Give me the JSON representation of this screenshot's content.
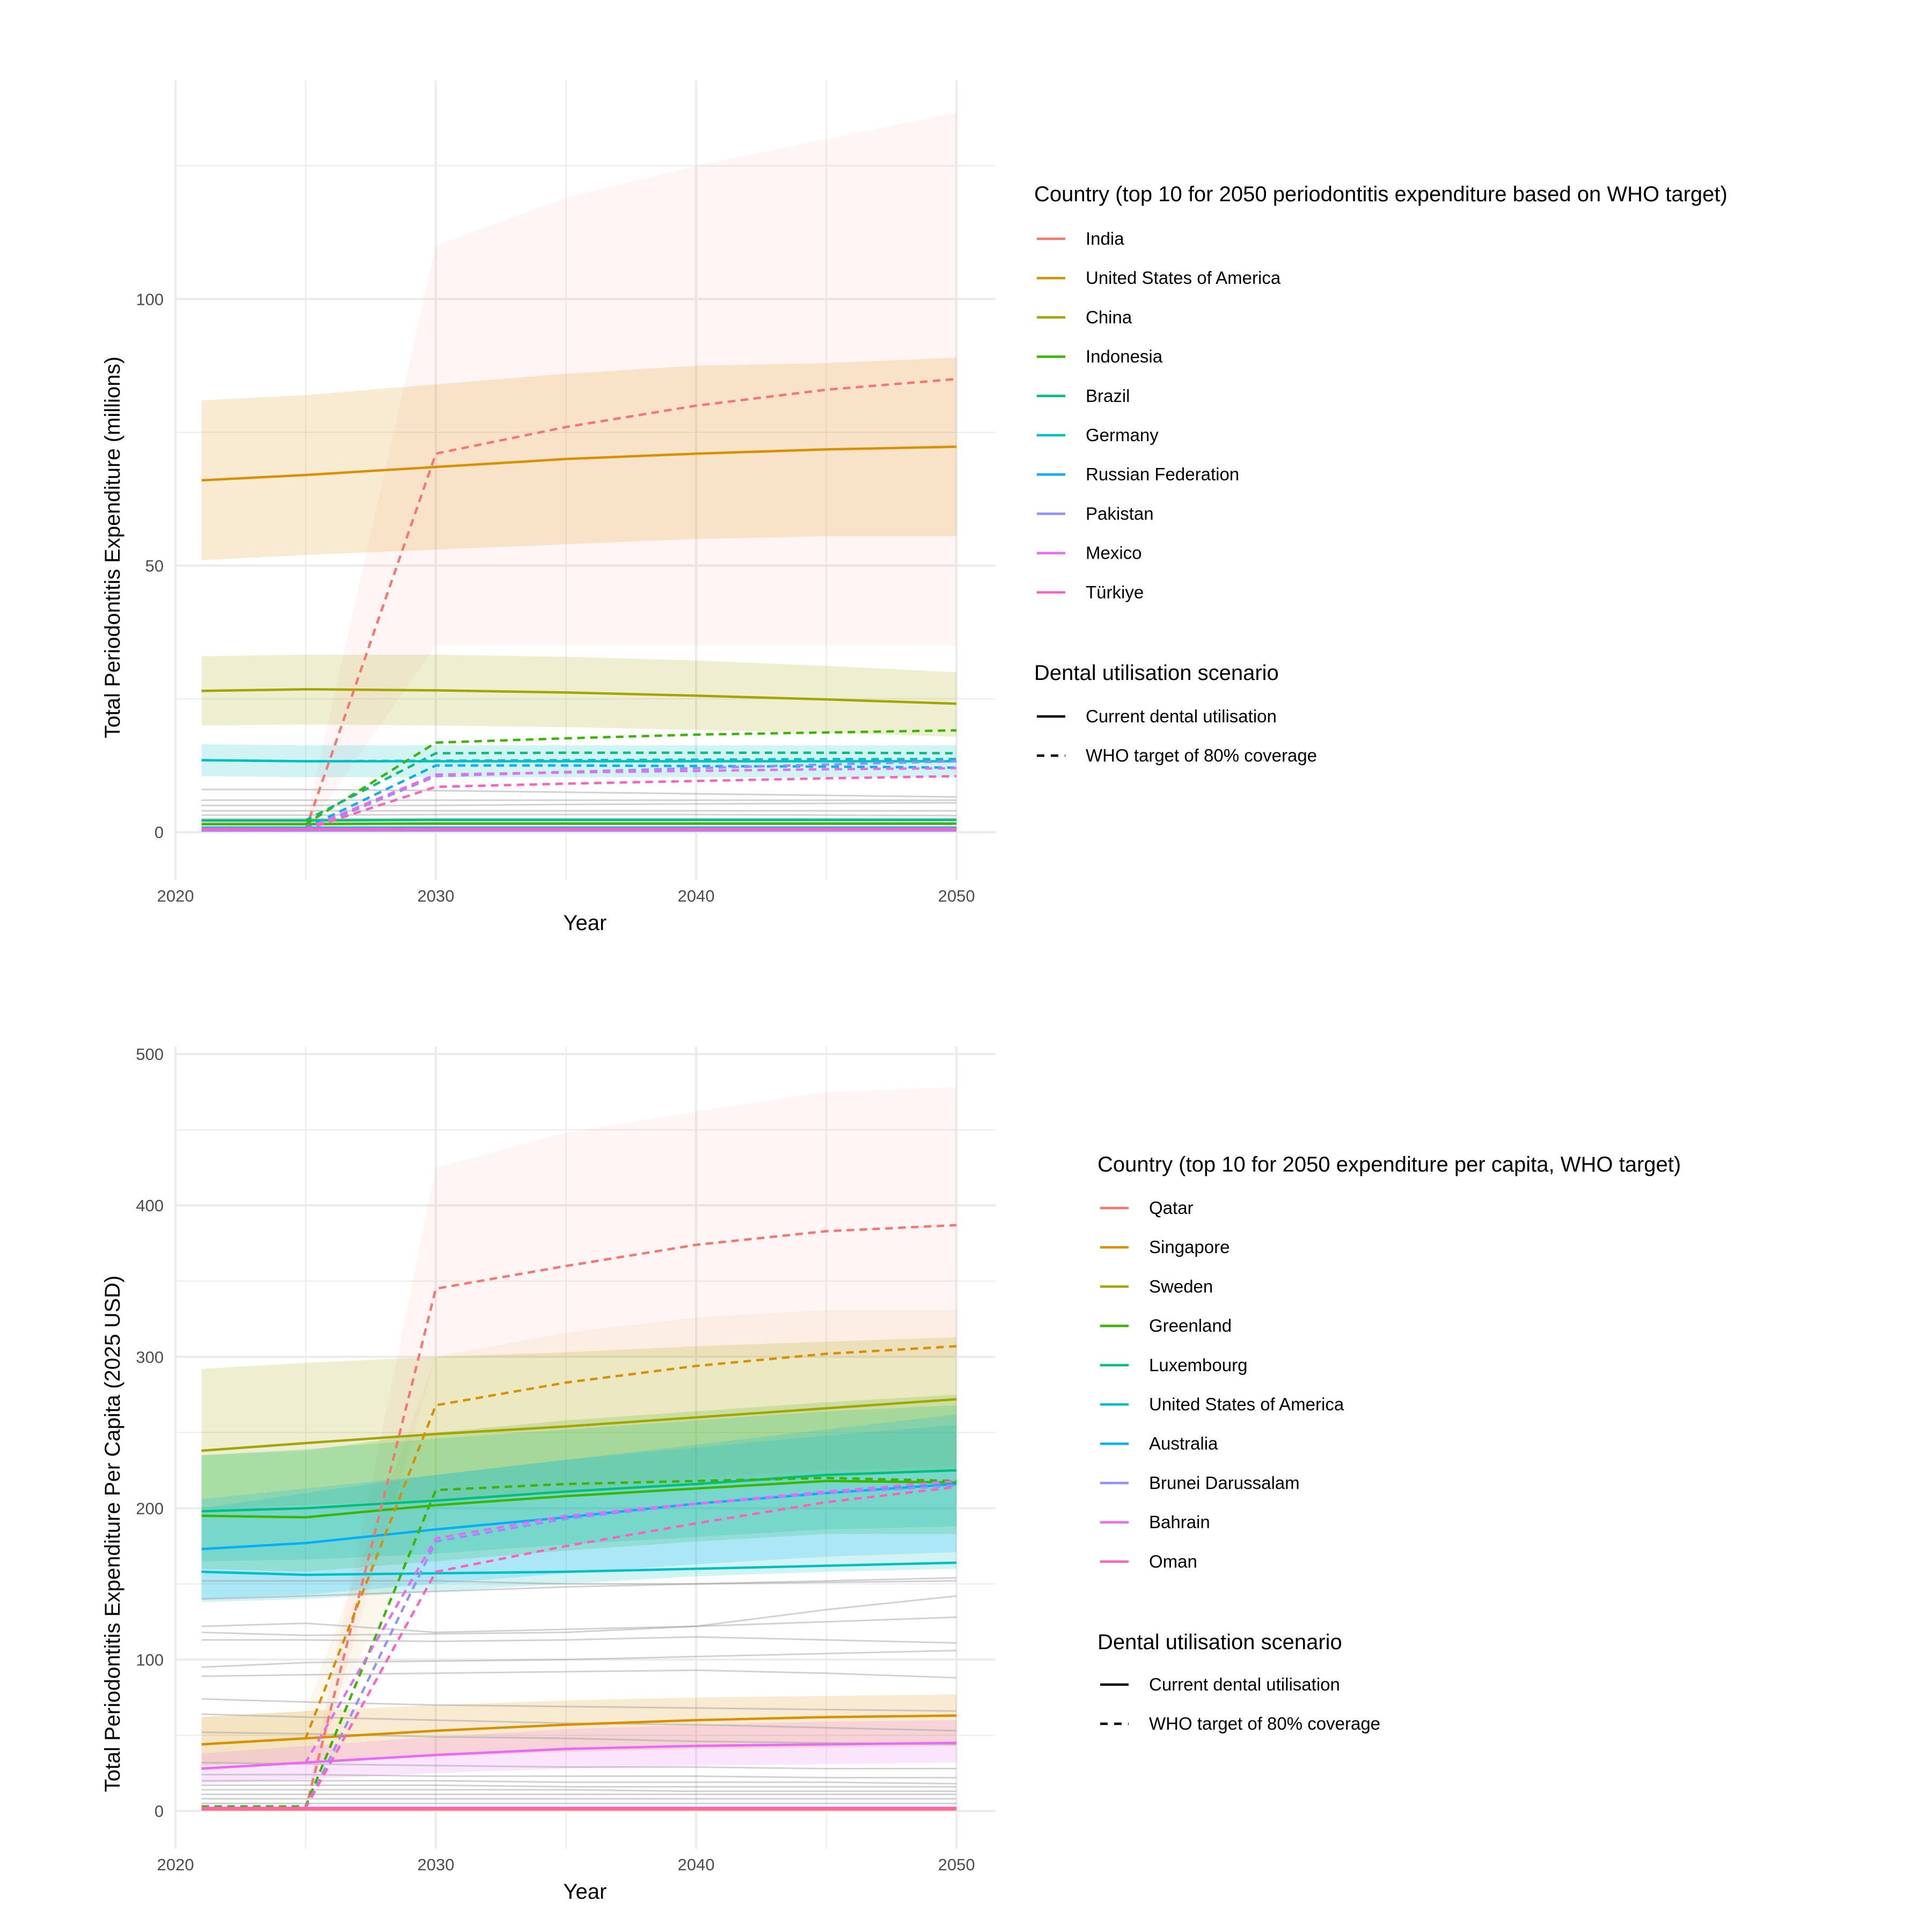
{
  "chart_data": [
    {
      "type": "line",
      "xlabel": "Year",
      "ylabel": "Total Periodontitis Expenditure (millions)",
      "xlim": [
        2020,
        2051.5
      ],
      "ylim": [
        -9,
        141
      ],
      "x_ticks": [
        "2020",
        "2030",
        "2040",
        "2050"
      ],
      "y_ticks": [
        "0",
        "50",
        "100"
      ],
      "grid": true,
      "legend_position": "right",
      "years": [
        2021,
        2025,
        2030,
        2035,
        2040,
        2045,
        2050
      ],
      "country_legend_title": "Country (top 10 for 2050 periodontitis expenditure based on WHO target)",
      "scenario_legend_title": "Dental utilisation scenario",
      "scenarios": [
        {
          "label": "Current dental utilisation",
          "dash": "solid"
        },
        {
          "label": "WHO target of 80% coverage",
          "dash": "dashed"
        }
      ],
      "series": [
        {
          "name": "India",
          "color": "#F8766D",
          "current": [
            0.5,
            0.5,
            0.5,
            0.5,
            0.5,
            0.5,
            0.5
          ],
          "who_target": [
            0.5,
            0.5,
            71,
            76,
            80,
            83,
            85
          ],
          "who_band": [
            [
              0,
              2
            ],
            [
              0,
              2
            ],
            [
              35,
              110
            ],
            [
              35,
              119
            ],
            [
              35,
              125
            ],
            [
              35,
              130
            ],
            [
              35,
              135
            ]
          ]
        },
        {
          "name": "United States of America",
          "color": "#D89000",
          "current": [
            66,
            67,
            68.5,
            70,
            71,
            71.8,
            72.3
          ],
          "current_band": [
            [
              51,
              81
            ],
            [
              52,
              82
            ],
            [
              53,
              84
            ],
            [
              54,
              86
            ],
            [
              55,
              87.5
            ],
            [
              55.5,
              88
            ],
            [
              55.5,
              89
            ]
          ]
        },
        {
          "name": "China",
          "color": "#A3A500",
          "current": [
            26.5,
            26.8,
            26.6,
            26.2,
            25.6,
            24.9,
            24.1
          ],
          "current_band": [
            [
              20,
              33
            ],
            [
              20.2,
              33.3
            ],
            [
              20,
              33.3
            ],
            [
              19.7,
              32.9
            ],
            [
              19.2,
              32.2
            ],
            [
              18.6,
              31.2
            ],
            [
              17.9,
              30
            ]
          ]
        },
        {
          "name": "Indonesia",
          "color": "#39B600",
          "current": [
            1.5,
            1.5,
            1.6,
            1.6,
            1.6,
            1.6,
            1.6
          ],
          "who_target": [
            1.5,
            1.5,
            16.8,
            17.6,
            18.3,
            18.7,
            19.1
          ]
        },
        {
          "name": "Brazil",
          "color": "#00BF7D",
          "current": [
            2.2,
            2.2,
            2.3,
            2.3,
            2.3,
            2.3,
            2.3
          ],
          "who_target": [
            2.2,
            2.2,
            14.8,
            14.9,
            14.9,
            14.9,
            14.8
          ]
        },
        {
          "name": "Germany",
          "color": "#00BFC4",
          "current": [
            13.5,
            13.3,
            13.3,
            13.3,
            13.3,
            13.3,
            13.3
          ],
          "current_band": [
            [
              10.5,
              16.5
            ],
            [
              10.3,
              16.3
            ],
            [
              10.3,
              16.3
            ],
            [
              10.3,
              16.3
            ],
            [
              10.3,
              16.3
            ],
            [
              10.3,
              16.3
            ],
            [
              10.3,
              16.3
            ]
          ],
          "who_target": [
            13.5,
            13.3,
            13.4,
            13.5,
            13.6,
            13.7,
            13.7
          ]
        },
        {
          "name": "Russian Federation",
          "color": "#00B0F6",
          "current": [
            0.8,
            0.8,
            0.8,
            0.8,
            0.8,
            0.8,
            0.8
          ],
          "who_target": [
            0.8,
            0.8,
            12.5,
            12.5,
            12.4,
            12.3,
            12.1
          ]
        },
        {
          "name": "Pakistan",
          "color": "#9590FF",
          "current": [
            0.3,
            0.3,
            0.3,
            0.3,
            0.3,
            0.3,
            0.3
          ],
          "who_target": [
            0.3,
            0.3,
            10.5,
            11.3,
            12,
            12.7,
            13.3
          ]
        },
        {
          "name": "Mexico",
          "color": "#E76BF3",
          "current": [
            0.6,
            0.6,
            0.6,
            0.6,
            0.6,
            0.6,
            0.6
          ],
          "who_target": [
            0.6,
            0.6,
            10.8,
            11.2,
            11.5,
            11.8,
            12
          ]
        },
        {
          "name": "Türkiye",
          "color": "#FF62BC",
          "current": [
            0.5,
            0.5,
            0.5,
            0.5,
            0.5,
            0.5,
            0.5
          ],
          "who_target": [
            0.5,
            0.5,
            8.5,
            9.1,
            9.6,
            10.1,
            10.5
          ]
        }
      ],
      "background_lines": [
        [
          8,
          8,
          7.8,
          7.5,
          7.2,
          6.9,
          6.6
        ],
        [
          6,
          6,
          6,
          6,
          6,
          6,
          6
        ],
        [
          5,
          5,
          5,
          5.2,
          5.3,
          5.4,
          5.5
        ],
        [
          4,
          4,
          4,
          4,
          4,
          4,
          4
        ],
        [
          3.2,
          3.2,
          3.3,
          3.3,
          3.3,
          3.2,
          3.1
        ],
        [
          2.5,
          2.5,
          2.5,
          2.5,
          2.5,
          2.5,
          2.5
        ],
        [
          1.8,
          1.8,
          1.8,
          1.8,
          1.8,
          1.8,
          1.8
        ],
        [
          1,
          1,
          1,
          1,
          1,
          1,
          1
        ],
        [
          0.4,
          0.4,
          0.4,
          0.4,
          0.4,
          0.4,
          0.4
        ]
      ]
    },
    {
      "type": "line",
      "xlabel": "Year",
      "ylabel": "Total Periodontitis Expenditure Per Capita (2025 USD)",
      "xlim": [
        2020,
        2051.5
      ],
      "ylim": [
        -25,
        505
      ],
      "x_ticks": [
        "2020",
        "2030",
        "2040",
        "2050"
      ],
      "y_ticks": [
        "0",
        "100",
        "200",
        "300",
        "400",
        "500"
      ],
      "grid": true,
      "legend_position": "right",
      "years": [
        2021,
        2025,
        2030,
        2035,
        2040,
        2045,
        2050
      ],
      "country_legend_title": "Country (top 10 for 2050 expenditure per capita, WHO target)",
      "scenario_legend_title": "Dental utilisation scenario",
      "scenarios": [
        {
          "label": "Current dental utilisation",
          "dash": "solid"
        },
        {
          "label": "WHO target of 80% coverage",
          "dash": "dashed"
        }
      ],
      "series": [
        {
          "name": "Qatar",
          "color": "#F8766D",
          "current": [
            1,
            1,
            1,
            1,
            1,
            1,
            1
          ],
          "who_target": [
            1,
            1,
            345,
            360,
            374,
            383,
            387
          ],
          "who_band": [
            [
              0,
              5
            ],
            [
              0,
              5
            ],
            [
              300,
              425
            ],
            [
              300,
              448
            ],
            [
              300,
              462
            ],
            [
              300,
              475
            ],
            [
              300,
              478
            ]
          ]
        },
        {
          "name": "Singapore",
          "color": "#D89000",
          "current": [
            44,
            48,
            53,
            57,
            60,
            62,
            63
          ],
          "current_band": [
            [
              30,
              62
            ],
            [
              32,
              66
            ],
            [
              36,
              70
            ],
            [
              39,
              73
            ],
            [
              41,
              75
            ],
            [
              42,
              76
            ],
            [
              43,
              77
            ]
          ],
          "who_target": [
            44,
            48,
            268,
            283,
            294,
            302,
            307
          ],
          "who_band": [
            [
              30,
              62
            ],
            [
              32,
              66
            ],
            [
              200,
              300
            ],
            [
              212,
              316
            ],
            [
              220,
              326
            ],
            [
              225,
              331
            ],
            [
              228,
              331
            ]
          ]
        },
        {
          "name": "Sweden",
          "color": "#A3A500",
          "current": [
            238,
            243,
            249,
            254,
            260,
            266,
            272
          ],
          "current_band": [
            [
              200,
              292
            ],
            [
              202,
              296
            ],
            [
              205,
              300
            ],
            [
              210,
              303
            ],
            [
              215,
              307
            ],
            [
              220,
              310
            ],
            [
              225,
              313
            ]
          ]
        },
        {
          "name": "Greenland",
          "color": "#39B600",
          "current": [
            195,
            194,
            202,
            208,
            213,
            218,
            217
          ],
          "current_band": [
            [
              160,
              235
            ],
            [
              158,
              238
            ],
            [
              165,
              250
            ],
            [
              172,
              258
            ],
            [
              178,
              264
            ],
            [
              183,
              270
            ],
            [
              183,
              275
            ]
          ],
          "who_target": [
            3,
            3,
            212,
            216,
            218,
            220,
            218
          ]
        },
        {
          "name": "Luxembourg",
          "color": "#00BF7D",
          "current": [
            198,
            200,
            205,
            211,
            216,
            222,
            225
          ],
          "current_band": [
            [
              165,
              235
            ],
            [
              166,
              239
            ],
            [
              170,
              246
            ],
            [
              176,
              252
            ],
            [
              181,
              258
            ],
            [
              186,
              264
            ],
            [
              188,
              268
            ]
          ]
        },
        {
          "name": "United States of America",
          "color": "#00BFC4",
          "current": [
            158,
            156,
            157,
            158,
            160,
            162,
            164
          ],
          "current_band": [
            [
              138,
              200
            ],
            [
              140,
              210
            ],
            [
              145,
              222
            ],
            [
              150,
              232
            ],
            [
              155,
              240
            ],
            [
              158,
              248
            ],
            [
              160,
              255
            ]
          ]
        },
        {
          "name": "Australia",
          "color": "#00B0F6",
          "current": [
            173,
            177,
            186,
            194,
            203,
            210,
            216
          ],
          "current_band": [
            [
              140,
              206
            ],
            [
              143,
              213
            ],
            [
              150,
              222
            ],
            [
              157,
              232
            ],
            [
              163,
              242
            ],
            [
              168,
              252
            ],
            [
              171,
              262
            ]
          ]
        },
        {
          "name": "Brunei Darussalam",
          "color": "#9590FF",
          "current": [
            2,
            2,
            2,
            2,
            2,
            2,
            2
          ],
          "who_target": [
            2,
            2,
            178,
            193,
            203,
            210,
            215
          ]
        },
        {
          "name": "Bahrain",
          "color": "#E76BF3",
          "current": [
            28,
            32,
            37,
            41,
            43,
            44,
            45
          ],
          "current_band": [
            [
              18,
              38
            ],
            [
              21,
              43
            ],
            [
              25,
              49
            ],
            [
              28,
              54
            ],
            [
              30,
              57
            ],
            [
              31,
              59
            ],
            [
              32,
              60
            ]
          ],
          "who_target": [
            28,
            32,
            180,
            195,
            203,
            211,
            218
          ]
        },
        {
          "name": "Oman",
          "color": "#FF62BC",
          "current": [
            2,
            2,
            2,
            2,
            2,
            2,
            2
          ],
          "who_target": [
            2,
            2,
            158,
            175,
            190,
            204,
            214
          ]
        }
      ],
      "background_lines": [
        [
          152,
          152,
          152,
          150,
          150,
          151,
          152
        ],
        [
          140,
          142,
          145,
          148,
          150,
          152,
          154
        ],
        [
          122,
          124,
          118,
          120,
          122,
          125,
          128
        ],
        [
          118,
          116,
          117,
          118,
          122,
          133,
          142
        ],
        [
          113,
          113,
          112,
          113,
          115,
          113,
          111
        ],
        [
          95,
          98,
          99,
          100,
          102,
          104,
          106
        ],
        [
          89,
          90,
          91,
          92,
          93,
          91,
          88
        ],
        [
          74,
          72,
          70,
          69,
          68,
          67,
          66
        ],
        [
          64,
          62,
          60,
          58,
          57,
          55,
          53
        ],
        [
          52,
          51,
          49,
          48,
          46,
          45,
          44
        ],
        [
          32,
          31,
          30,
          29,
          29,
          28,
          28
        ],
        [
          24,
          24,
          23,
          23,
          23,
          22,
          22
        ],
        [
          20,
          20,
          20,
          19,
          19,
          19,
          18
        ],
        [
          17,
          17,
          17,
          16,
          16,
          16,
          16
        ],
        [
          14,
          14,
          14,
          14,
          13,
          13,
          13
        ],
        [
          11,
          11,
          11,
          11,
          11,
          11,
          11
        ],
        [
          8,
          8,
          8,
          8,
          8,
          8,
          8
        ],
        [
          5,
          5,
          5,
          5,
          5,
          5,
          5
        ]
      ]
    }
  ]
}
